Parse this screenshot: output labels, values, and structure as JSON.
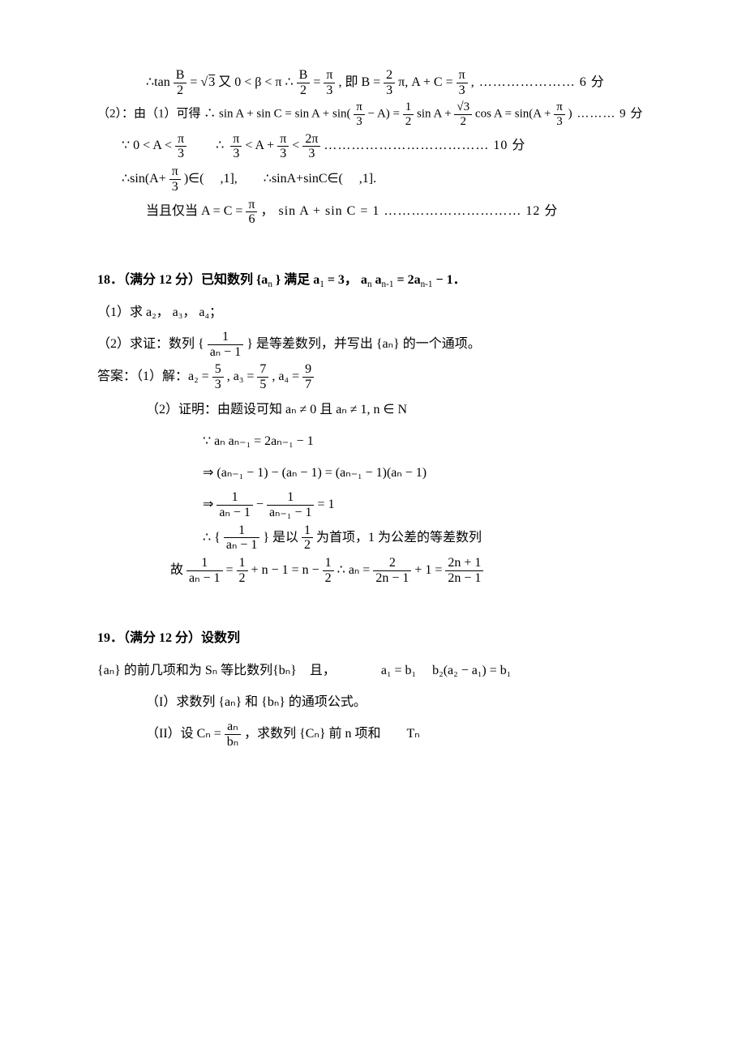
{
  "sec1": {
    "l1a": "∴tan ",
    "l1_frac1_num": "B",
    "l1_frac1_den": "2",
    "l1b": " = √",
    "l1_sqrt": "3",
    "l1c": " 又 0 < β < π ∴ ",
    "l1_frac2_num": "B",
    "l1_frac2_den": "2",
    "l1d": " = ",
    "l1_frac3_num": "π",
    "l1_frac3_den": "3",
    "l1e": ", 即 B = ",
    "l1_frac4_num": "2",
    "l1_frac4_den": "3",
    "l1f": "π, A + C = ",
    "l1_frac5_num": "π",
    "l1_frac5_den": "3",
    "l1g": ",  ………………… 6 分",
    "l2a": "（2）：由（1）可得 ∴ sin A + sin C = sin A + sin(",
    "l2_frac1_num": "π",
    "l2_frac1_den": "3",
    "l2b": " − A) = ",
    "l2_frac2_num": "1",
    "l2_frac2_den": "2",
    "l2c": " sin A + ",
    "l2_frac3_num": "√3",
    "l2_frac3_den": "2",
    "l2d": " cos A = sin(A + ",
    "l2_frac4_num": "π",
    "l2_frac4_den": "3",
    "l2e": ") ……… 9 分",
    "l3a": "∵ 0 < A < ",
    "l3_frac1_num": "π",
    "l3_frac1_den": "3",
    "l3b": "        ∴ ",
    "l3_frac2_num": "π",
    "l3_frac2_den": "3",
    "l3c": " < A + ",
    "l3_frac3_num": "π",
    "l3_frac3_den": "3",
    "l3d": " < ",
    "l3_frac4_num": "2π",
    "l3_frac4_den": "3",
    "l3e": " ……………………………… 10 分",
    "l4a": "∴sin(A+",
    "l4_frac_num": "π",
    "l4_frac_den": "3",
    "l4b": ")∈(　 ,1],　　∴sinA+sinC∈(　 ,1].",
    "l5a": "当且仅当 A = C = ",
    "l5_frac_num": "π",
    "l5_frac_den": "6",
    "l5b": " ， sin A + sin C = 1 ………………………… 12 分"
  },
  "p18": {
    "head_a": "18．（满分 12 分）已知数列 {a",
    "head_b": "} 满足 a",
    "head_c": " = 3，  a",
    "head_d": "a",
    "head_e": " = 2a",
    "head_f": " − 1．",
    "q1": "（1）求 a₂，  a₃，  a₄；",
    "q2a": "（2）求证：数列 { ",
    "q2_frac_num": "1",
    "q2_frac_den": "aₙ − 1",
    "q2b": " } 是等差数列，并写出 {aₙ} 的一个通项。",
    "ans1a": "答案：（1）解：a₂ = ",
    "f1n": "5",
    "f1d": "3",
    "ans1b": ", a₃ = ",
    "f2n": "7",
    "f2d": "5",
    "ans1c": ", a₄ = ",
    "f3n": "9",
    "f3d": "7",
    "pf_a": "（2）证明：由题设可知 aₙ ≠ 0 且 aₙ ≠ 1, n ∈ N",
    "pf_b": "∵ aₙ aₙ₋₁ = 2aₙ₋₁ − 1",
    "pf_c": "⇒ (aₙ₋₁ − 1) − (aₙ − 1) = (aₙ₋₁ − 1)(aₙ − 1)",
    "pf_d_a": "⇒ ",
    "pf_d_f1n": "1",
    "pf_d_f1d": "aₙ − 1",
    "pf_d_b": " − ",
    "pf_d_f2n": "1",
    "pf_d_f2d": "aₙ₋₁ − 1",
    "pf_d_c": " = 1",
    "pf_e_a": "∴ { ",
    "pf_e_f1n": "1",
    "pf_e_f1d": "aₙ − 1",
    "pf_e_b": " } 是以 ",
    "pf_e_f2n": "1",
    "pf_e_f2d": "2",
    "pf_e_c": " 为首项，1 为公差的等差数列",
    "pf_f_a": "故 ",
    "pf_f_f1n": "1",
    "pf_f_f1d": "aₙ − 1",
    "pf_f_b": " = ",
    "pf_f_f2n": "1",
    "pf_f_f2d": "2",
    "pf_f_c": " + n − 1 = n − ",
    "pf_f_f3n": "1",
    "pf_f_f3d": "2",
    "pf_f_d": "   ∴ aₙ = ",
    "pf_f_f4n": "2",
    "pf_f_f4d": "2n − 1",
    "pf_f_e": " + 1 = ",
    "pf_f_f5n": "2n + 1",
    "pf_f_f5d": "2n − 1"
  },
  "p19": {
    "head": "19．（满分 12 分）设数列",
    "l2": "{aₙ} 的前几项和为 Sₙ 等比数列{bₙ}　且，　　　　a₁ = b₁　 b₂(a₂ − a₁) = b₁",
    "q1": "（I）求数列 {aₙ} 和 {bₙ} 的通项公式。",
    "q2a": "（II）设 Cₙ = ",
    "q2_frac_num": "aₙ",
    "q2_frac_den": "bₙ",
    "q2b": "，求数列 {Cₙ} 前 n 项和　　Tₙ"
  }
}
